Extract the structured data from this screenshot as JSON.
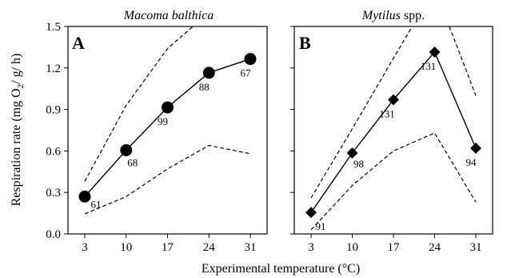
{
  "chart_data": [
    {
      "type": "line",
      "panel_letter": "A",
      "title": "Macoma balthica",
      "title_suffix": "",
      "x": [
        3,
        10,
        17,
        24,
        31
      ],
      "xlabels": [
        "3",
        "10",
        "17",
        "24",
        "31"
      ],
      "ylim": [
        0.0,
        1.5
      ],
      "yticks": [
        "0.0",
        "0.3",
        "0.6",
        "0.9",
        "1.2",
        "1.5"
      ],
      "marker": "circle",
      "series": [
        {
          "role": "mean",
          "values": [
            0.27,
            0.605,
            0.915,
            1.165,
            1.265
          ]
        }
      ],
      "upper_bound": [
        [
          3,
          0.38
        ],
        [
          10,
          0.93
        ],
        [
          17,
          1.34
        ],
        [
          21.3,
          1.5
        ]
      ],
      "lower_bound": [
        [
          3,
          0.145
        ],
        [
          10,
          0.27
        ],
        [
          17,
          0.47
        ],
        [
          24,
          0.64
        ],
        [
          31,
          0.58
        ]
      ],
      "data_labels": [
        "61",
        "68",
        "99",
        "88",
        "67"
      ]
    },
    {
      "type": "line",
      "panel_letter": "B",
      "title": "Mytilus",
      "title_suffix": " spp.",
      "x": [
        3,
        10,
        17,
        24,
        31
      ],
      "xlabels": [
        "3",
        "10",
        "17",
        "24",
        "31"
      ],
      "ylim": [
        0.0,
        1.5
      ],
      "yticks": [],
      "marker": "diamond",
      "series": [
        {
          "role": "mean",
          "values": [
            0.155,
            0.585,
            0.97,
            1.315,
            0.62
          ]
        }
      ],
      "upper_bound": [
        [
          3,
          0.26
        ],
        [
          10,
          0.76
        ],
        [
          17,
          1.27
        ],
        [
          20.2,
          1.5
        ]
      ],
      "upper_bound_2": [
        [
          26.5,
          1.5
        ],
        [
          31,
          1.0
        ]
      ],
      "lower_bound": [
        [
          3,
          0.03
        ],
        [
          10,
          0.35
        ],
        [
          17,
          0.6
        ],
        [
          24,
          0.73
        ],
        [
          31,
          0.23
        ]
      ],
      "data_labels": [
        "91",
        "98",
        "131",
        "131",
        "94"
      ]
    }
  ],
  "ylabel_main": "Respiration rate (mg O",
  "ylabel_sub": "2",
  "ylabel_tail": "/ g/ h)",
  "xlabel": "Experimental temperature (°C)"
}
